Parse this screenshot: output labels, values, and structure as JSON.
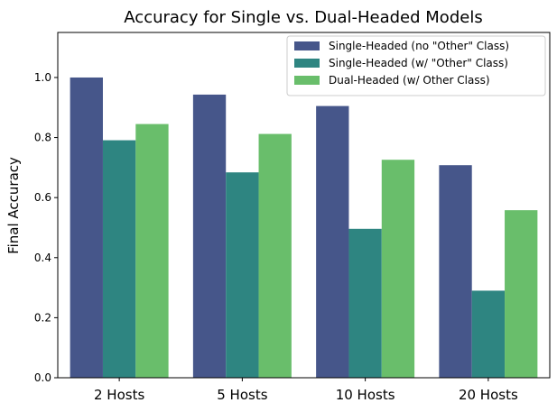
{
  "chart_data": {
    "type": "bar",
    "title": "Accuracy for Single vs. Dual-Headed Models",
    "xlabel": "",
    "ylabel": "Final Accuracy",
    "categories": [
      "2 Hosts",
      "5 Hosts",
      "10 Hosts",
      "20 Hosts"
    ],
    "ylim": [
      0,
      1.15
    ],
    "yticks": [
      0.0,
      0.2,
      0.4,
      0.6,
      0.8,
      1.0
    ],
    "ytick_labels": [
      "0.0",
      "0.2",
      "0.4",
      "0.6",
      "0.8",
      "1.0"
    ],
    "grid": false,
    "legend_position": "top-right",
    "series": [
      {
        "name": "Single-Headed (no \"Other\" Class)",
        "color": "#46568a",
        "values": [
          1.0,
          0.943,
          0.905,
          0.708
        ]
      },
      {
        "name": "Single-Headed (w/ \"Other\" Class)",
        "color": "#2e8581",
        "values": [
          0.791,
          0.684,
          0.496,
          0.29
        ]
      },
      {
        "name": "Dual-Headed (w/ Other Class)",
        "color": "#69be6b",
        "values": [
          0.845,
          0.812,
          0.726,
          0.558
        ]
      }
    ]
  }
}
